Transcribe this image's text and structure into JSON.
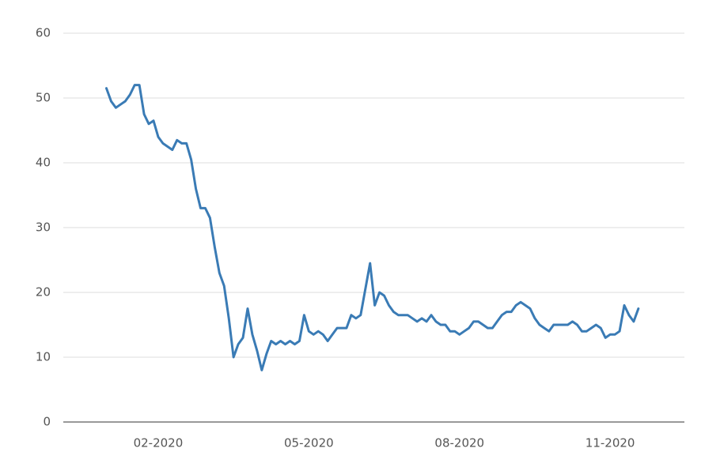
{
  "chart_data": {
    "type": "line",
    "categories": [
      null,
      null,
      null,
      null,
      null,
      null,
      null,
      null,
      null,
      null,
      null,
      "02-2020",
      null,
      null,
      null,
      null,
      null,
      null,
      null,
      null,
      null,
      null,
      null,
      null,
      null,
      null,
      null,
      null,
      null,
      null,
      null,
      null,
      null,
      null,
      null,
      null,
      null,
      null,
      null,
      null,
      null,
      null,
      null,
      "05-2020",
      null,
      null,
      null,
      null,
      null,
      null,
      null,
      null,
      null,
      null,
      null,
      null,
      null,
      null,
      null,
      null,
      null,
      null,
      null,
      null,
      null,
      null,
      null,
      null,
      null,
      null,
      null,
      null,
      null,
      null,
      null,
      "08-2020",
      null,
      null,
      null,
      null,
      null,
      null,
      null,
      null,
      null,
      null,
      null,
      null,
      null,
      null,
      null,
      null,
      null,
      null,
      null,
      null,
      null,
      null,
      null,
      null,
      null,
      null,
      null,
      null,
      null,
      null,
      null,
      "11-2020",
      null,
      null,
      null,
      null,
      null,
      null
    ],
    "series": [
      {
        "color": "#3a7bb5",
        "values": [
          51.5,
          49.5,
          48.5,
          49,
          49.5,
          50.5,
          52,
          52,
          47.5,
          46,
          46.5,
          44,
          43,
          42.5,
          42,
          43.5,
          43,
          43,
          40.5,
          36,
          33,
          33,
          31.5,
          27,
          23,
          21,
          16,
          10,
          12,
          13,
          17.5,
          13.5,
          11,
          8,
          10.5,
          12.5,
          12,
          12.5,
          12,
          12.5,
          12,
          12.5,
          16.5,
          14,
          13.5,
          14,
          13.5,
          12.5,
          13.5,
          14.5,
          14.5,
          14.5,
          16.5,
          16,
          16.5,
          20.5,
          24.5,
          18,
          20,
          19.5,
          18,
          17,
          16.5,
          16.5,
          16.5,
          16,
          15.5,
          16,
          15.5,
          16.5,
          15.5,
          15,
          15,
          14,
          14,
          13.5,
          14,
          14.5,
          15.5,
          15.5,
          15,
          14.5,
          14.5,
          15.5,
          16.5,
          17,
          17,
          18,
          18.5,
          18,
          17.5,
          16,
          15,
          14.5,
          14,
          15,
          15,
          15,
          15,
          15.5,
          15,
          14,
          14,
          14.5,
          15,
          14.5,
          13,
          13.5,
          13.5,
          14,
          18,
          16.5,
          15.5,
          17.5
        ]
      }
    ],
    "ylim": [
      0,
      60
    ],
    "yticks": [
      0,
      10,
      20,
      30,
      40,
      50,
      60
    ],
    "grid": true
  }
}
